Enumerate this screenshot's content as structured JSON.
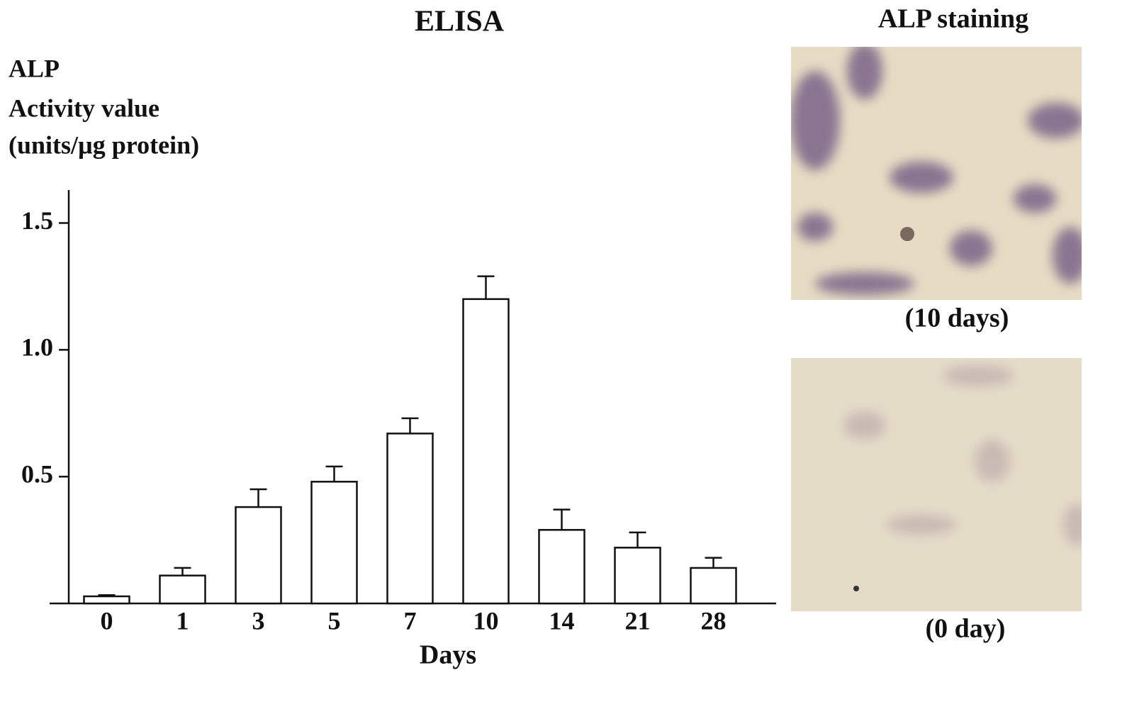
{
  "chart_data": {
    "type": "bar",
    "title": "ELISA",
    "ylabel": [
      "ALP",
      "Activity value",
      "(units/µg protein)"
    ],
    "xlabel": "Days",
    "categories": [
      "0",
      "1",
      "3",
      "5",
      "7",
      "10",
      "14",
      "21",
      "28"
    ],
    "values": [
      0.028,
      0.11,
      0.38,
      0.48,
      0.67,
      1.2,
      0.29,
      0.22,
      0.14
    ],
    "errors": [
      0.005,
      0.03,
      0.07,
      0.06,
      0.06,
      0.09,
      0.08,
      0.06,
      0.04
    ],
    "color": "#ffffff",
    "ylim": [
      0,
      1.63
    ],
    "yticks": [
      0.5,
      {
        "value": 1,
        "label": "1.0"
      },
      1.5
    ]
  },
  "staining": {
    "title": "ALP staining",
    "images": [
      {
        "caption": "(10 days)"
      },
      {
        "caption": "(0 day)"
      }
    ]
  }
}
